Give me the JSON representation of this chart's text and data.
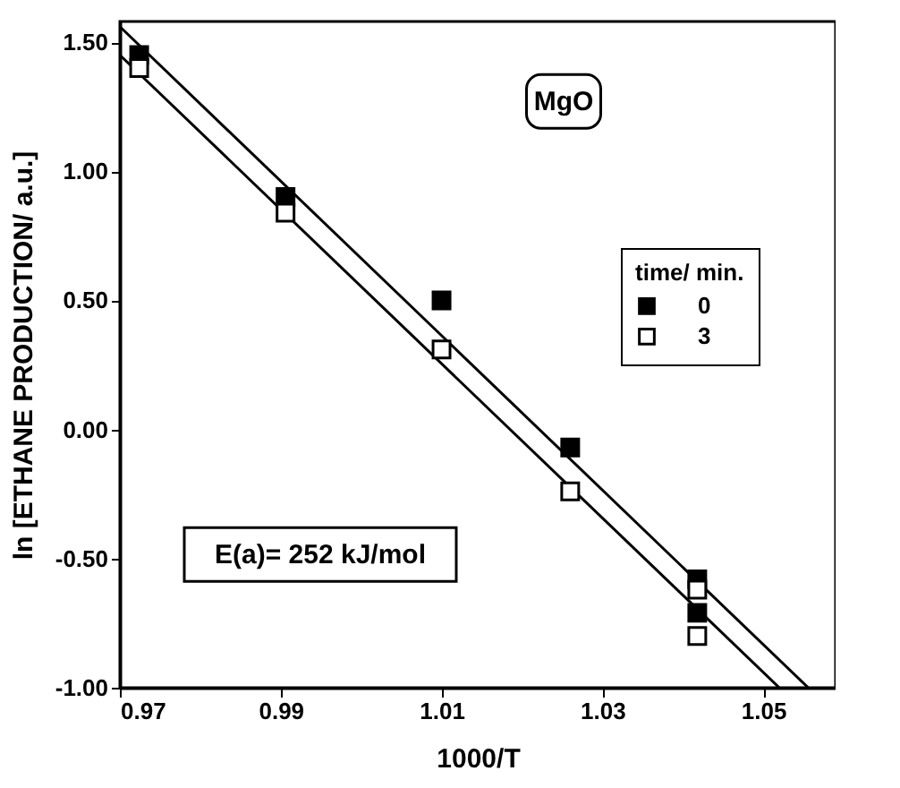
{
  "chart_data": {
    "type": "scatter",
    "xlabel": "1000/T",
    "ylabel": "ln [ETHANE PRODUCTION/ a.u.]",
    "legend_title": "time/ min.",
    "xlim": [
      0.97,
      1.059
    ],
    "ylim": [
      -1.0,
      1.58
    ],
    "xticks": [
      0.97,
      0.99,
      1.01,
      1.03,
      1.05
    ],
    "yticks": [
      {
        "value": -1.0,
        "label": "-1.00"
      },
      {
        "value": -0.5,
        "label": "-0.50"
      },
      {
        "value": 0.0,
        "label": "0.00"
      },
      {
        "value": 0.5,
        "label": "0.50"
      },
      {
        "value": 1.0,
        "label": "1.00"
      },
      {
        "value": 1.5,
        "label": "1.50"
      }
    ],
    "marker": "square",
    "legend": "right",
    "grid": false,
    "annotations": [
      "MgO",
      "E(a)= 252 kJ/mol"
    ],
    "series": [
      {
        "name": "0",
        "color": "#000000",
        "x": [
          0.9724,
          0.9906,
          1.01,
          1.026,
          1.0418,
          1.0418
        ],
        "values": [
          1.45,
          0.9,
          0.5,
          -0.07,
          -0.58,
          -0.71
        ]
      },
      {
        "name": "3",
        "color": "#000000",
        "x": [
          0.9724,
          0.9906,
          1.01,
          1.026,
          1.0418,
          1.0418
        ],
        "values": [
          1.4,
          0.84,
          0.31,
          -0.24,
          -0.62,
          -0.8
        ]
      },
      {
        "type": "line",
        "marker": "none",
        "line_style": "solid",
        "color": "#000000",
        "x": [
          0.97,
          1.0556
        ],
        "values": [
          1.56,
          -1.0
        ]
      },
      {
        "type": "line",
        "marker": "none",
        "line_style": "solid",
        "color": "#000000",
        "x": [
          0.97,
          1.052
        ],
        "values": [
          1.45,
          -1.0
        ]
      }
    ]
  }
}
